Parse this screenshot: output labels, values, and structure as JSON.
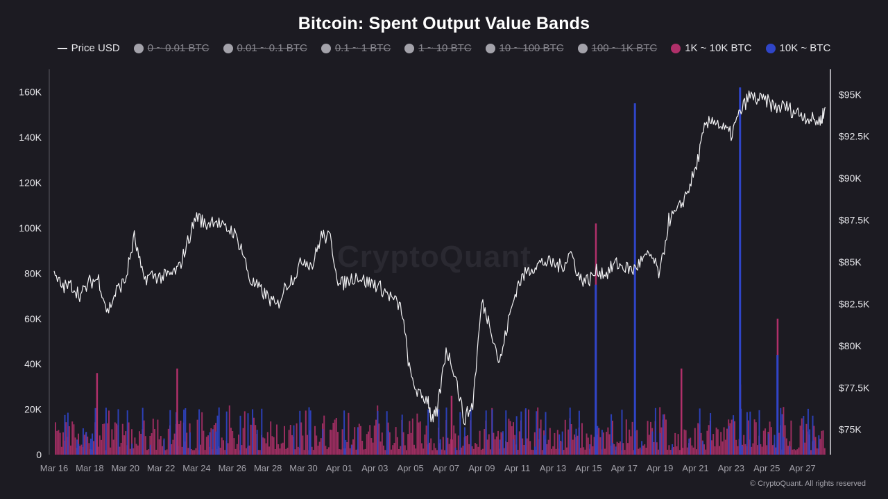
{
  "chart_data": {
    "type": "bar",
    "title": "Bitcoin: Spent Output Value Bands",
    "legend": [
      {
        "name": "Price USD",
        "kind": "line",
        "color": "#e6e6ea",
        "active": true
      },
      {
        "name": "0 ~ 0.01 BTC",
        "kind": "dot",
        "color": "#a3a2aa",
        "active": false
      },
      {
        "name": "0.01 ~ 0.1 BTC",
        "kind": "dot",
        "color": "#a3a2aa",
        "active": false
      },
      {
        "name": "0.1 ~ 1 BTC",
        "kind": "dot",
        "color": "#a3a2aa",
        "active": false
      },
      {
        "name": "1 ~ 10 BTC",
        "kind": "dot",
        "color": "#a3a2aa",
        "active": false
      },
      {
        "name": "10 ~ 100 BTC",
        "kind": "dot",
        "color": "#a3a2aa",
        "active": false
      },
      {
        "name": "100 ~ 1K BTC",
        "kind": "dot",
        "color": "#a3a2aa",
        "active": false
      },
      {
        "name": "1K ~ 10K BTC",
        "kind": "dot",
        "color": "#b0306a",
        "active": true
      },
      {
        "name": "10K ~ BTC",
        "kind": "dot",
        "color": "#2f45c8",
        "active": true
      }
    ],
    "legend_position": "top-center",
    "grid": false,
    "left_axis": {
      "ticks": [
        0,
        20000,
        40000,
        60000,
        80000,
        100000,
        120000,
        140000,
        160000
      ],
      "tick_labels": [
        "0",
        "20K",
        "40K",
        "60K",
        "80K",
        "100K",
        "120K",
        "140K",
        "160K"
      ],
      "range": [
        0,
        170000
      ]
    },
    "right_axis": {
      "ticks": [
        75000,
        77500,
        80000,
        82500,
        85000,
        87500,
        90000,
        92500,
        95000
      ],
      "tick_labels": [
        "$75K",
        "$77.5K",
        "$80K",
        "$82.5K",
        "$85K",
        "$87.5K",
        "$90K",
        "$92.5K",
        "$95K"
      ],
      "range": [
        73500,
        96500
      ]
    },
    "x_tick_labels": [
      "Mar 16",
      "Mar 18",
      "Mar 20",
      "Mar 22",
      "Mar 24",
      "Mar 26",
      "Mar 28",
      "Mar 30",
      "Apr 01",
      "Apr 03",
      "Apr 05",
      "Apr 07",
      "Apr 09",
      "Apr 11",
      "Apr 13",
      "Apr 15",
      "Apr 17",
      "Apr 19",
      "Apr 21",
      "Apr 23",
      "Apr 25",
      "Apr 27"
    ],
    "x_range_days": [
      0,
      43.3
    ],
    "price_series": {
      "name": "Price USD",
      "x_days": [
        0,
        0.5,
        1,
        1.5,
        2,
        2.5,
        3,
        3.5,
        4,
        4.5,
        5,
        5.5,
        6,
        6.5,
        7,
        7.5,
        8,
        8.5,
        9,
        9.5,
        10,
        10.5,
        11,
        11.5,
        12,
        12.5,
        13,
        13.5,
        14,
        14.5,
        15,
        15.5,
        16,
        16.5,
        17,
        17.5,
        18,
        18.5,
        19,
        19.5,
        20,
        20.5,
        21,
        21.2,
        21.5,
        22,
        22.5,
        23,
        23.5,
        24,
        24.5,
        25,
        25.5,
        26,
        26.5,
        27,
        27.5,
        28,
        28.5,
        29,
        29.5,
        30,
        30.5,
        31,
        31.5,
        32,
        32.5,
        33,
        33.5,
        34,
        34.5,
        35,
        35.5,
        36,
        36.5,
        37,
        37.5,
        38,
        38.5,
        39,
        39.5,
        40,
        40.5,
        41,
        41.5,
        42,
        42.5,
        43,
        43.3
      ],
      "values": [
        84100,
        83500,
        83600,
        83000,
        83800,
        84000,
        82000,
        83300,
        83900,
        86500,
        84000,
        84200,
        84100,
        84200,
        84600,
        86200,
        87800,
        87200,
        87600,
        87000,
        86900,
        85900,
        83900,
        83400,
        82900,
        82300,
        83600,
        84200,
        85200,
        84800,
        86600,
        86400,
        83600,
        83900,
        84200,
        83800,
        83700,
        83300,
        82800,
        82200,
        78200,
        77000,
        76800,
        75400,
        76100,
        79800,
        78400,
        75600,
        76500,
        82600,
        81200,
        78900,
        81500,
        83600,
        84400,
        84800,
        85000,
        84900,
        84700,
        85600,
        84000,
        83900,
        84500,
        84300,
        84900,
        84700,
        84500,
        85100,
        85400,
        84200,
        87500,
        88000,
        89100,
        90500,
        92900,
        93600,
        93000,
        92600,
        93900,
        94900,
        94700,
        94600,
        94200,
        94300,
        94000,
        93800,
        93500,
        93400,
        94200
      ]
    },
    "band_1k_10k": {
      "name": "1K ~ 10K BTC",
      "spikes": [
        {
          "x_day": 2.4,
          "value": 36000
        },
        {
          "x_day": 6.9,
          "value": 38000
        },
        {
          "x_day": 22.3,
          "value": 26000
        },
        {
          "x_day": 30.4,
          "value": 102000
        },
        {
          "x_day": 35.2,
          "value": 38000
        },
        {
          "x_day": 38.5,
          "value": 31000
        },
        {
          "x_day": 40.6,
          "value": 60000
        }
      ],
      "typical_range": [
        3000,
        20000
      ]
    },
    "band_10k_plus": {
      "name": "10K ~ BTC",
      "spikes": [
        {
          "x_day": 30.4,
          "value": 75000
        },
        {
          "x_day": 32.6,
          "value": 155000
        },
        {
          "x_day": 38.5,
          "value": 162000
        },
        {
          "x_day": 40.6,
          "value": 44000
        }
      ],
      "typical_range": [
        0,
        20000
      ]
    }
  },
  "watermark": "CryptoQuant",
  "credit": "© CryptoQuant. All rights reserved"
}
